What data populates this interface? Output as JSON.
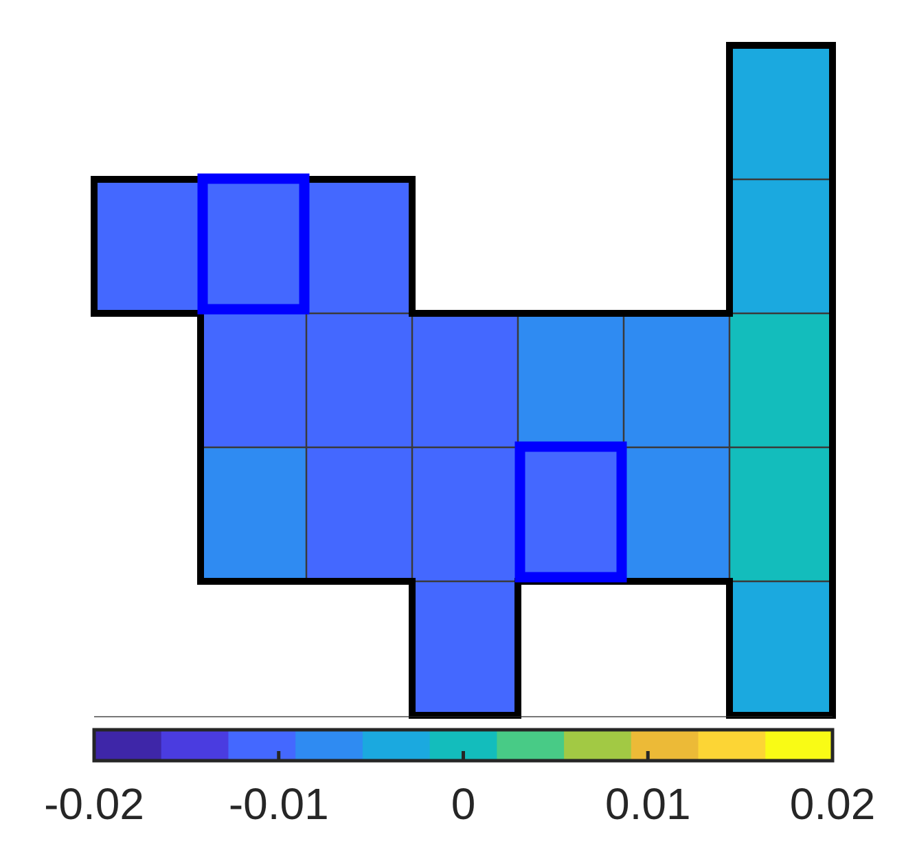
{
  "chart_data": {
    "type": "heatmap",
    "title": "",
    "xlabel": "",
    "ylabel": "",
    "grid_columns": 7,
    "grid_rows": 5,
    "cells": [
      {
        "col": 0,
        "row": 1,
        "value": -0.01
      },
      {
        "col": 1,
        "row": 1,
        "value": -0.01
      },
      {
        "col": 2,
        "row": 1,
        "value": -0.01
      },
      {
        "col": 1,
        "row": 2,
        "value": -0.01
      },
      {
        "col": 2,
        "row": 2,
        "value": -0.01
      },
      {
        "col": 3,
        "row": 2,
        "value": -0.01
      },
      {
        "col": 4,
        "row": 2,
        "value": -0.0065
      },
      {
        "col": 5,
        "row": 2,
        "value": -0.0065
      },
      {
        "col": 1,
        "row": 3,
        "value": -0.0065
      },
      {
        "col": 2,
        "row": 3,
        "value": -0.01
      },
      {
        "col": 3,
        "row": 3,
        "value": -0.01
      },
      {
        "col": 4,
        "row": 3,
        "value": -0.01
      },
      {
        "col": 5,
        "row": 3,
        "value": -0.0065
      },
      {
        "col": 3,
        "row": 4,
        "value": -0.01
      },
      {
        "col": 6,
        "row": 0,
        "value": -0.003
      },
      {
        "col": 6,
        "row": 1,
        "value": -0.003
      },
      {
        "col": 6,
        "row": 2,
        "value": 0.0005
      },
      {
        "col": 6,
        "row": 3,
        "value": 0.0005
      },
      {
        "col": 6,
        "row": 4,
        "value": -0.003
      }
    ],
    "highlighted_cells": [
      {
        "col": 1,
        "row": 1
      },
      {
        "col": 4,
        "row": 3
      }
    ],
    "highlight_color": "#0000ff",
    "colorbar": {
      "placement": "bottom",
      "range": [
        -0.02,
        0.02
      ],
      "ticks": [
        -0.02,
        -0.01,
        0,
        0.01,
        0.02
      ],
      "tick_labels": [
        "-0.02",
        "-0.01",
        "0",
        "0.01",
        "0.02"
      ],
      "colors": [
        "#3e26a8",
        "#4a3ce0",
        "#4468ff",
        "#2f8bf2",
        "#1ba9df",
        "#13bdbc",
        "#48cb86",
        "#a2c944",
        "#ecba37",
        "#fcd535",
        "#f9fb15"
      ]
    }
  }
}
